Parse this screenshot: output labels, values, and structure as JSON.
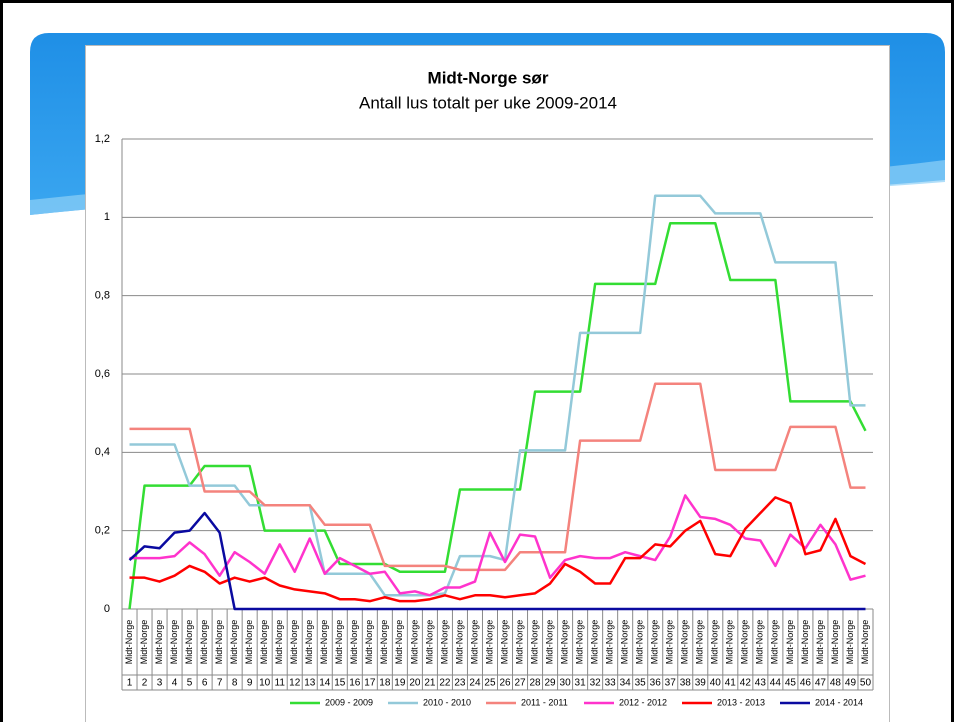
{
  "chart_data": {
    "type": "line",
    "title": "Midt-Norge sør",
    "subtitle": "Antall lus totalt per uke 2009-2014",
    "category_group": "Midt-Norge",
    "categories": [
      "1",
      "2",
      "3",
      "4",
      "5",
      "6",
      "7",
      "8",
      "9",
      "10",
      "11",
      "12",
      "13",
      "14",
      "15",
      "16",
      "17",
      "18",
      "19",
      "20",
      "21",
      "22",
      "23",
      "24",
      "25",
      "26",
      "27",
      "28",
      "29",
      "30",
      "31",
      "32",
      "33",
      "34",
      "35",
      "36",
      "37",
      "38",
      "39",
      "40",
      "41",
      "42",
      "43",
      "44",
      "45",
      "46",
      "47",
      "48",
      "49",
      "50"
    ],
    "ylim": [
      0,
      1.2
    ],
    "yticks": [
      0,
      {
        "value": 0.2,
        "label": "0,2"
      },
      {
        "value": 0.4,
        "label": "0,4"
      },
      {
        "value": 0.6,
        "label": "0,6"
      },
      {
        "value": 0.8,
        "label": "0,8"
      },
      1,
      {
        "value": 1.2,
        "label": "1,2"
      }
    ],
    "grid": true,
    "legend": "bottom",
    "series": [
      {
        "name": "2009 - 2009",
        "color": "#33dd33",
        "values": [
          0,
          0.315,
          0.315,
          0.315,
          0.315,
          0.365,
          0.365,
          0.365,
          0.365,
          0.2,
          0.2,
          0.2,
          0.2,
          0.2,
          0.115,
          0.115,
          0.115,
          0.115,
          0.095,
          0.095,
          0.095,
          0.095,
          0.305,
          0.305,
          0.305,
          0.305,
          0.305,
          0.555,
          0.555,
          0.555,
          0.555,
          0.83,
          0.83,
          0.83,
          0.83,
          0.83,
          0.985,
          0.985,
          0.985,
          0.985,
          0.84,
          0.84,
          0.84,
          0.84,
          0.53,
          0.53,
          0.53,
          0.53,
          0.53,
          0.455
        ]
      },
      {
        "name": "2010 - 2010",
        "color": "#93c9d9",
        "values": [
          0.42,
          0.42,
          0.42,
          0.42,
          0.315,
          0.315,
          0.315,
          0.315,
          0.265,
          0.265,
          0.265,
          0.265,
          0.265,
          0.09,
          0.09,
          0.09,
          0.09,
          0.035,
          0.035,
          0.035,
          0.035,
          0.04,
          0.135,
          0.135,
          0.135,
          0.125,
          0.405,
          0.405,
          0.405,
          0.405,
          0.705,
          0.705,
          0.705,
          0.705,
          0.705,
          1.055,
          1.055,
          1.055,
          1.055,
          1.01,
          1.01,
          1.01,
          1.01,
          0.885,
          0.885,
          0.885,
          0.885,
          0.885,
          0.52,
          0.52
        ]
      },
      {
        "name": "2011 - 2011",
        "color": "#f4837d",
        "values": [
          0.46,
          0.46,
          0.46,
          0.46,
          0.46,
          0.3,
          0.3,
          0.3,
          0.3,
          0.265,
          0.265,
          0.265,
          0.265,
          0.215,
          0.215,
          0.215,
          0.215,
          0.11,
          0.11,
          0.11,
          0.11,
          0.11,
          0.1,
          0.1,
          0.1,
          0.1,
          0.145,
          0.145,
          0.145,
          0.145,
          0.43,
          0.43,
          0.43,
          0.43,
          0.43,
          0.575,
          0.575,
          0.575,
          0.575,
          0.355,
          0.355,
          0.355,
          0.355,
          0.355,
          0.465,
          0.465,
          0.465,
          0.465,
          0.31,
          0.31
        ]
      },
      {
        "name": "2012 - 2012",
        "color": "#ff33cc",
        "values": [
          0.13,
          0.13,
          0.13,
          0.135,
          0.17,
          0.14,
          0.085,
          0.145,
          0.12,
          0.09,
          0.165,
          0.095,
          0.18,
          0.09,
          0.13,
          0.11,
          0.09,
          0.095,
          0.04,
          0.045,
          0.035,
          0.055,
          0.055,
          0.07,
          0.195,
          0.12,
          0.19,
          0.185,
          0.08,
          0.125,
          0.135,
          0.13,
          0.13,
          0.145,
          0.135,
          0.125,
          0.185,
          0.29,
          0.235,
          0.23,
          0.215,
          0.18,
          0.175,
          0.11,
          0.19,
          0.155,
          0.215,
          0.165,
          0.075,
          0.085
        ]
      },
      {
        "name": "2013 - 2013",
        "color": "#ff0000",
        "values": [
          0.08,
          0.08,
          0.07,
          0.085,
          0.11,
          0.095,
          0.065,
          0.08,
          0.07,
          0.08,
          0.06,
          0.05,
          0.045,
          0.04,
          0.025,
          0.025,
          0.02,
          0.03,
          0.02,
          0.02,
          0.025,
          0.035,
          0.025,
          0.035,
          0.035,
          0.03,
          0.035,
          0.04,
          0.065,
          0.115,
          0.095,
          0.065,
          0.065,
          0.13,
          0.13,
          0.165,
          0.16,
          0.2,
          0.225,
          0.14,
          0.135,
          0.205,
          0.245,
          0.285,
          0.27,
          0.14,
          0.15,
          0.23,
          0.135,
          0.115
        ]
      },
      {
        "name": "2014 - 2014",
        "color": "#0a0aa0",
        "values": [
          0.125,
          0.16,
          0.155,
          0.195,
          0.2,
          0.245,
          0.195,
          0,
          0,
          0,
          0,
          0,
          0,
          0,
          0,
          0,
          0,
          0,
          0,
          0,
          0,
          0,
          0,
          0,
          0,
          0,
          0,
          0,
          0,
          0,
          0,
          0,
          0,
          0,
          0,
          0,
          0,
          0,
          0,
          0,
          0,
          0,
          0,
          0,
          0,
          0,
          0,
          0,
          0,
          0
        ]
      }
    ]
  }
}
